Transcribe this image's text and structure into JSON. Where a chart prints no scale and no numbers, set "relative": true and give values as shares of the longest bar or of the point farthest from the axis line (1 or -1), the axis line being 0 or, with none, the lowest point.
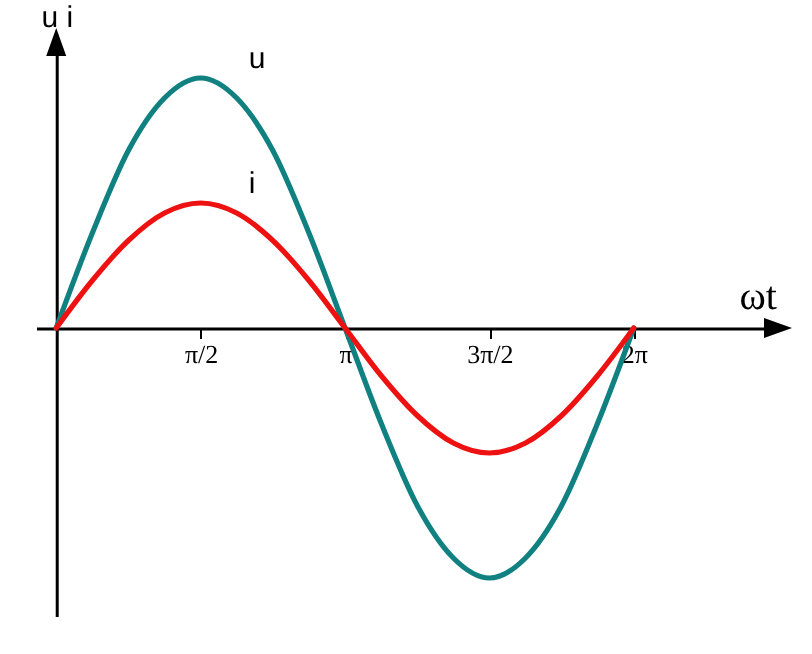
{
  "chart_data": {
    "type": "line",
    "relative": true,
    "ylabel": "u  i",
    "xlabel": "ωt",
    "tick_labels": "x",
    "x": [
      0,
      0.393,
      0.785,
      1.178,
      1.571,
      1.963,
      2.356,
      2.749,
      3.142,
      3.534,
      3.927,
      4.32,
      4.712,
      5.105,
      5.498,
      5.89,
      6.283
    ],
    "xlim": [
      -0.22,
      7.83
    ],
    "xticks": [
      {
        "value": 1.571,
        "label": "π/2"
      },
      {
        "value": 3.142,
        "label": "π"
      },
      {
        "value": 4.712,
        "label": "3π/2"
      },
      {
        "value": 6.283,
        "label": "2π"
      }
    ],
    "series": [
      {
        "name": "u",
        "color": "#108080",
        "values": [
          0,
          0.38,
          0.71,
          0.92,
          1,
          0.92,
          0.71,
          0.38,
          0,
          -0.38,
          -0.71,
          -0.92,
          -1,
          -0.92,
          -0.71,
          -0.38,
          0
        ]
      },
      {
        "name": "i",
        "color": "#ee1111",
        "values": [
          0,
          0.19,
          0.35,
          0.46,
          0.5,
          0.46,
          0.35,
          0.19,
          0,
          -0.19,
          -0.35,
          -0.46,
          -0.5,
          -0.46,
          -0.35,
          -0.19,
          0
        ]
      }
    ]
  }
}
